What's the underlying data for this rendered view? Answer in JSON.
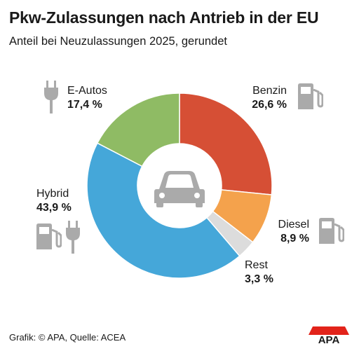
{
  "title": "Pkw-Zulassungen nach Antrieb in der EU",
  "subtitle": "Anteil bei Neuzulassungen 2025, gerundet",
  "footer": "Grafik: © APA, Quelle: ACEA",
  "logo_text": "APA",
  "colors": {
    "benzin": "#d64f35",
    "diesel": "#f4a24c",
    "rest": "#dcdcdc",
    "hybrid": "#45a7d9",
    "eautos": "#8fbb64",
    "icon": "#aaaaaa",
    "logo_red": "#e2231a"
  },
  "chart_data": {
    "type": "pie",
    "categories": [
      "Benzin",
      "Diesel",
      "Rest",
      "Hybrid",
      "E-Autos"
    ],
    "values": [
      26.6,
      8.9,
      3.3,
      43.9,
      17.4
    ],
    "value_labels": [
      "26,6 %",
      "8,9 %",
      "3,3 %",
      "43,9 %",
      "17,4 %"
    ],
    "unit": "%",
    "donut": true,
    "center_icon": "car-icon",
    "colors": [
      "#d64f35",
      "#f4a24c",
      "#dcdcdc",
      "#45a7d9",
      "#8fbb64"
    ]
  },
  "labels": {
    "eautos": {
      "name": "E-Autos",
      "pct": "17,4 %"
    },
    "benzin": {
      "name": "Benzin",
      "pct": "26,6 %"
    },
    "hybrid": {
      "name": "Hybrid",
      "pct": "43,9 %"
    },
    "diesel": {
      "name": "Diesel",
      "pct": "8,9 %"
    },
    "rest": {
      "name": "Rest",
      "pct": "3,3 %"
    }
  }
}
